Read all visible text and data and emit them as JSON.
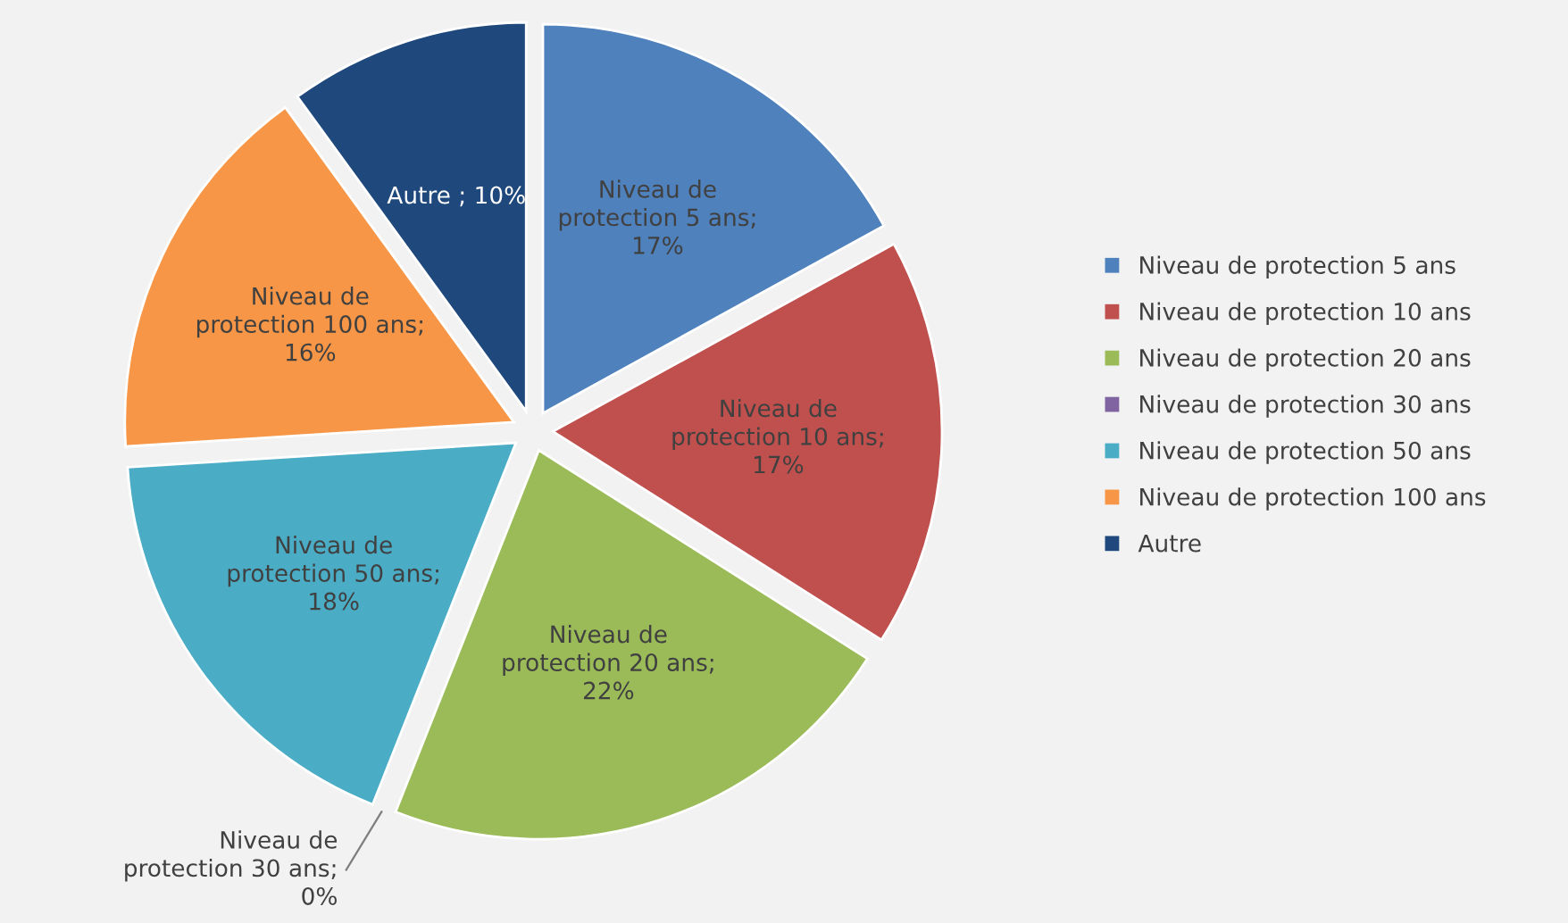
{
  "chart_data": {
    "type": "pie",
    "categories": [
      "Niveau de protection 5 ans",
      "Niveau de protection 10 ans",
      "Niveau de protection 20 ans",
      "Niveau de protection 30 ans",
      "Niveau de protection 50 ans",
      "Niveau de protection 100 ans",
      "Autre"
    ],
    "values": [
      17,
      17,
      22,
      0,
      18,
      16,
      10
    ],
    "colors": [
      "#4f81bd",
      "#c0504d",
      "#9bbb59",
      "#8064a2",
      "#4bacc6",
      "#f79646",
      "#1f497d"
    ],
    "value_labels": [
      "Niveau de\nprotection 5 ans;\n17%",
      "Niveau de\nprotection 10 ans;\n17%",
      "Niveau de\nprotection 20 ans;\n22%",
      "Niveau de\nprotection 30 ans;\n0%",
      "Niveau de\nprotection 50 ans;\n18%",
      "Niveau de\nprotection 100 ans;\n16%",
      "Autre ; 10%"
    ],
    "legend": "right"
  }
}
